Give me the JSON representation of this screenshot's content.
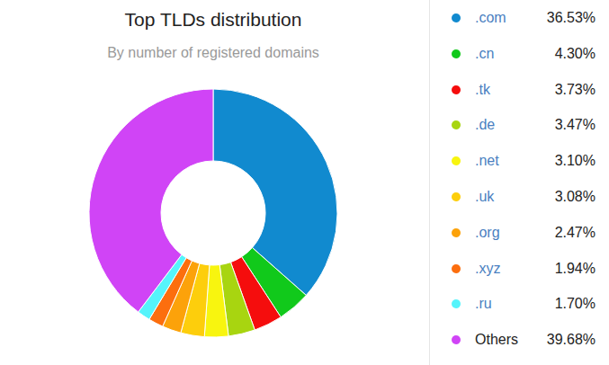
{
  "chart_data": {
    "type": "donut",
    "title": "Top TLDs distribution",
    "subtitle": "By number of registered domains",
    "categories": [
      ".com",
      ".cn",
      ".tk",
      ".de",
      ".net",
      ".uk",
      ".org",
      ".xyz",
      ".ru",
      "Others"
    ],
    "values": [
      36.53,
      4.3,
      3.73,
      3.47,
      3.1,
      3.08,
      2.47,
      1.94,
      1.7,
      39.68
    ],
    "value_labels": [
      "36.53%",
      "4.30%",
      "3.73%",
      "3.47%",
      "3.10%",
      "3.08%",
      "2.47%",
      "1.94%",
      "1.70%",
      "39.68%"
    ],
    "colors": [
      "#118acf",
      "#11c91b",
      "#f50d0d",
      "#a8d510",
      "#f8f50f",
      "#fdce0c",
      "#fca20a",
      "#fc6e0e",
      "#55f4fb",
      "#d044f6"
    ],
    "legend": "right"
  }
}
